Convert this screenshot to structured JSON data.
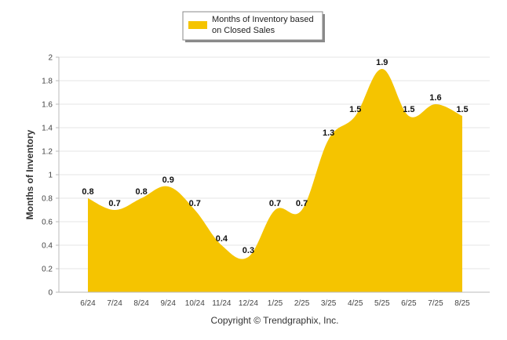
{
  "chart_data": {
    "type": "area",
    "categories": [
      "6/24",
      "7/24",
      "8/24",
      "9/24",
      "10/24",
      "11/24",
      "12/24",
      "1/25",
      "2/25",
      "3/25",
      "4/25",
      "5/25",
      "6/25",
      "7/25",
      "8/25"
    ],
    "series": [
      {
        "name": "Months of Inventory based on Closed Sales",
        "values": [
          0.8,
          0.7,
          0.8,
          0.9,
          0.7,
          0.4,
          0.3,
          0.7,
          0.7,
          1.3,
          1.5,
          1.9,
          1.5,
          1.6,
          1.5
        ],
        "color": "#F5C400"
      }
    ],
    "data_labels": [
      "0.8",
      "0.7",
      "0.8",
      "0.9",
      "0.7",
      "0.4",
      "0.3",
      "0.7",
      "0.7",
      "1.3",
      "1.5",
      "1.9",
      "1.5",
      "1.6",
      "1.5"
    ],
    "ylabel": "Months of Inventory",
    "xlabel": "",
    "ylim": [
      0,
      2
    ],
    "yticks": [
      "0",
      "0.2",
      "0.4",
      "0.6",
      "0.8",
      "1",
      "1.2",
      "1.4",
      "1.6",
      "1.8",
      "2"
    ],
    "grid": true,
    "legend": {
      "position": "top-center",
      "lines": [
        "Months of Inventory based",
        "on Closed Sales"
      ]
    }
  },
  "footer": {
    "copyright": "Copyright © Trendgraphix, Inc."
  }
}
